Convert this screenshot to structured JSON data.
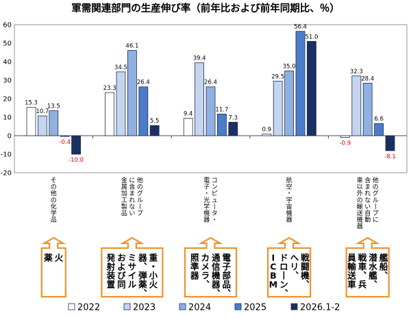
{
  "chart_data": {
    "type": "bar",
    "title": "軍需関連部門の生産伸び率（前年比および前年同期比、％）",
    "ylim": [
      -20,
      60
    ],
    "yticks": [
      "60",
      "50",
      "40",
      "30",
      "20",
      "10",
      "0",
      "-10",
      "-20"
    ],
    "categories": [
      "その他の化学品",
      "他のグループに含まれない金属加工製品",
      "コンピュータ・電子・光学機器",
      "航空・宇宙機器",
      "他のグループに含まれない自動車以外の輸送機器"
    ],
    "category_columns": [
      [
        "その他の化学品"
      ],
      [
        "他のグループ",
        "に含まれない",
        "金属加工製品"
      ],
      [
        "コンピュータ・",
        "電子・光学機器"
      ],
      [
        "航空・宇宙機器"
      ],
      [
        "他のグループに",
        "含まれない自動",
        "車以外の輸送機器"
      ]
    ],
    "series": [
      {
        "name": "2022",
        "color": "#ffffff",
        "values": [
          15.3,
          23.3,
          9.4,
          0.9,
          -0.9
        ],
        "labels": [
          "15.3",
          "23.3",
          "9.4",
          "0.9",
          "-0.9"
        ]
      },
      {
        "name": "2023",
        "color": "#c5d5ee",
        "values": [
          10.7,
          34.5,
          39.4,
          29.5,
          32.3
        ],
        "labels": [
          "10.7",
          "34.5",
          "39.4",
          "29.5",
          "32.3"
        ]
      },
      {
        "name": "2024",
        "color": "#8fb0e0",
        "values": [
          13.5,
          46.1,
          26.4,
          35.0,
          28.4
        ],
        "labels": [
          "13.5",
          "46.1",
          "26.4",
          "35.0",
          "28.4"
        ]
      },
      {
        "name": "2025",
        "color": "#4a7cc9",
        "values": [
          -0.4,
          26.4,
          11.7,
          56.4,
          6.6
        ],
        "labels": [
          "-0.4",
          "26.4",
          "11.7",
          "56.4",
          "6.6"
        ]
      },
      {
        "name": "2026.1-2",
        "color": "#1a3060",
        "values": [
          -10.0,
          5.5,
          7.3,
          51.0,
          -8.1
        ],
        "labels": [
          "-10.0",
          "5.5",
          "7.3",
          "51.0",
          "-8.1"
        ]
      }
    ],
    "annotations": [
      {
        "columns": [
          "火",
          "薬"
        ]
      },
      {
        "columns": [
          "重・小火",
          "器、弾薬、",
          "ミサイル",
          "および同",
          "発射装置"
        ]
      },
      {
        "columns": [
          "電子部品、",
          "通信機器、",
          "カメラ、",
          "照準器"
        ]
      },
      {
        "columns": [
          "戦闘機、",
          "ヘリ、",
          "ドローン、",
          "ICBM"
        ]
      },
      {
        "columns": [
          "艦船、",
          "潜水艦、",
          "戦車、兵",
          "員輸送車"
        ]
      }
    ],
    "colors": {
      "bar_stroke": "#1a2b55",
      "axis": "#444444",
      "callout": "#f0922b",
      "negative_label": "#e00000"
    }
  }
}
